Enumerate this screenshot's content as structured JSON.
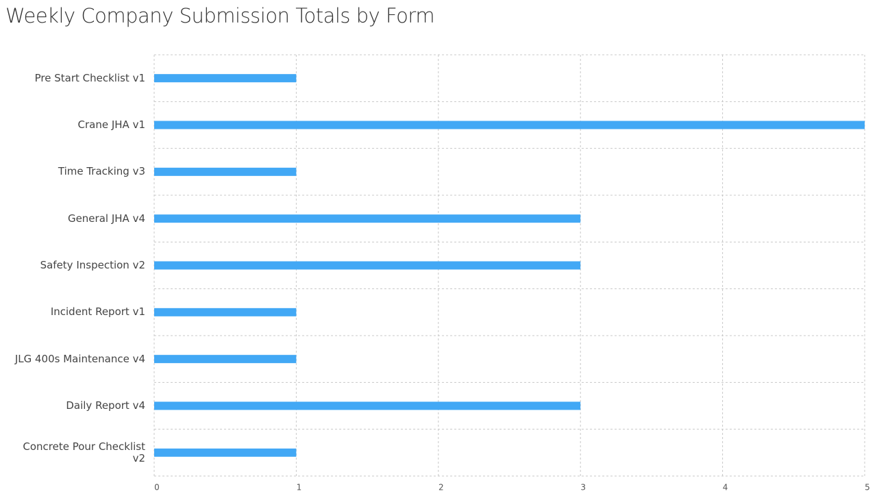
{
  "chart_data": {
    "type": "bar",
    "title": "Weekly Company Submission Totals by Form",
    "categories": [
      "Pre Start Checklist v1",
      "Crane JHA v1",
      "Time Tracking v3",
      "General JHA v4",
      "Safety Inspection v2",
      "Incident Report v1",
      "JLG 400s Maintenance v4",
      "Daily Report v4",
      "Concrete Pour Checklist v2"
    ],
    "values": [
      1,
      5,
      1,
      3,
      3,
      1,
      1,
      3,
      1
    ],
    "color": "#42a8f5",
    "xlim": [
      0,
      5
    ],
    "xticks": [
      0,
      1,
      2,
      3,
      4,
      5
    ],
    "grid": true
  }
}
